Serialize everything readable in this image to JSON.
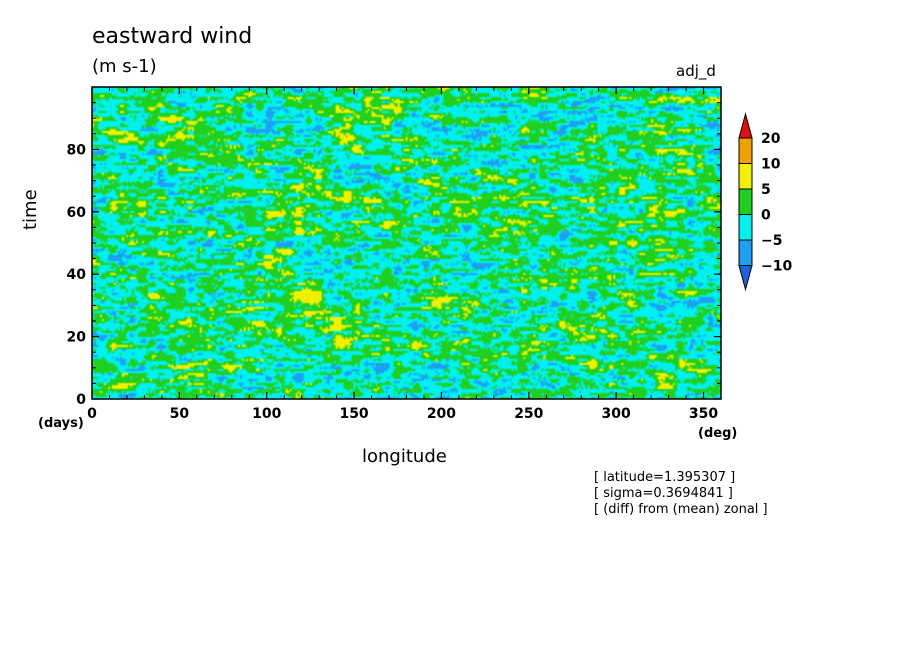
{
  "chart_data": {
    "type": "heatmap",
    "title": "eastward wind",
    "units": "(m s-1)",
    "run_label": "adj_d",
    "xlabel": "longitude",
    "ylabel": "time",
    "x_unit": "(deg)",
    "y_unit": "(days)",
    "xlim": [
      0,
      360
    ],
    "ylim": [
      0,
      100
    ],
    "x_ticks": [
      0,
      50,
      100,
      150,
      200,
      250,
      300,
      350
    ],
    "y_ticks": [
      0,
      20,
      40,
      60,
      80
    ],
    "colorbar": {
      "levels": [
        -10,
        -5,
        0,
        5,
        10,
        20
      ],
      "labels": [
        "20",
        "10",
        "5",
        "0",
        "−5",
        "−10"
      ],
      "colors": [
        "#1f5fe0",
        "#1ea0f0",
        "#00f0f0",
        "#20d020",
        "#f0f000",
        "#f0a000",
        "#e01010"
      ]
    },
    "annotations": [
      "[ latitude=1.395307 ]",
      "[ sigma=0.3694841 ]",
      "[ (diff) from (mean) zonal ]"
    ]
  }
}
